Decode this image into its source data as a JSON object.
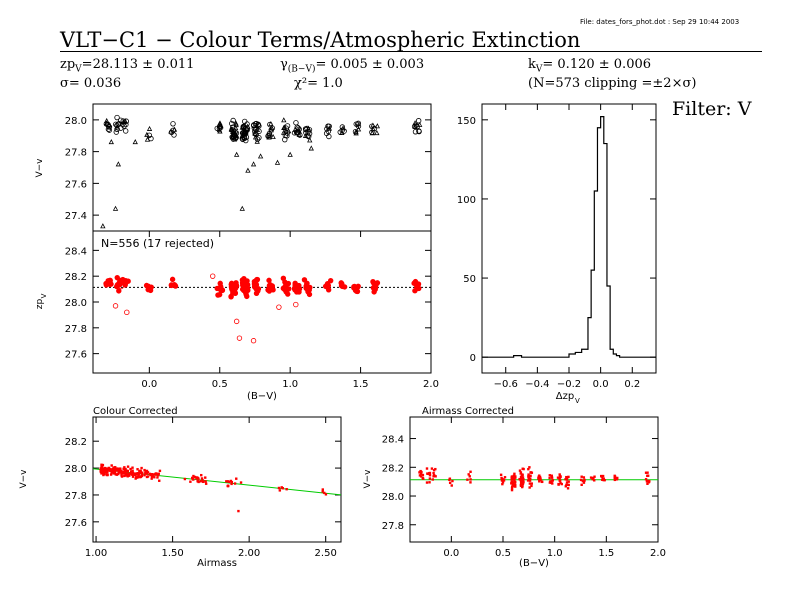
{
  "file_note": "File: dates_fors_phot.dot : Sep 29 10:44 2003",
  "title": "VLT−C1  −  Colour Terms/Atmospheric Extinction",
  "stats": {
    "zp_label": "zp",
    "zp_sub": "V",
    "zp_value": "=28.113 ± 0.011",
    "sigma": "σ= 0.036",
    "gamma_label": "γ",
    "gamma_sub": "(B−V)",
    "gamma_value": "= 0.005 ± 0.003",
    "chi_label": "χ²= ",
    "chi_value": "1.0",
    "k_label": "k",
    "k_sub": "V",
    "k_value": "= 0.120 ± 0.006",
    "clip": "(N=573 clipping =±2×σ)"
  },
  "filter_label": "Filter: V",
  "colors": {
    "rejected": "#000000",
    "kept": "#ff0000",
    "fit_line": "#00cc00",
    "zp_line": "#000000"
  },
  "chart_data": [
    {
      "id": "v_minus_v_raw",
      "type": "scatter",
      "xlabel": "",
      "ylabel": "V−v",
      "xlim": [
        -0.4,
        2.0
      ],
      "ylim": [
        27.3,
        28.1
      ],
      "yticks": [
        27.4,
        27.6,
        27.8,
        28.0
      ],
      "ytick_labels": [
        "27.4",
        "27.6",
        "27.8",
        "28.0"
      ],
      "groups": [
        {
          "x": -0.29,
          "y_center": 27.97,
          "spread": 0.05,
          "n": 10
        },
        {
          "x": -0.22,
          "y_center": 27.96,
          "spread": 0.05,
          "n": 10
        },
        {
          "x": -0.17,
          "y_center": 27.97,
          "spread": 0.05,
          "n": 8
        },
        {
          "x": 0.0,
          "y_center": 27.93,
          "spread": 0.04,
          "n": 5
        },
        {
          "x": 0.17,
          "y_center": 27.95,
          "spread": 0.05,
          "n": 6
        },
        {
          "x": 0.5,
          "y_center": 27.93,
          "spread": 0.05,
          "n": 10
        },
        {
          "x": 0.6,
          "y_center": 27.93,
          "spread": 0.06,
          "n": 30
        },
        {
          "x": 0.68,
          "y_center": 27.93,
          "spread": 0.06,
          "n": 35
        },
        {
          "x": 0.76,
          "y_center": 27.94,
          "spread": 0.06,
          "n": 20
        },
        {
          "x": 0.86,
          "y_center": 27.93,
          "spread": 0.05,
          "n": 12
        },
        {
          "x": 0.97,
          "y_center": 27.94,
          "spread": 0.06,
          "n": 12
        },
        {
          "x": 1.05,
          "y_center": 27.93,
          "spread": 0.05,
          "n": 14
        },
        {
          "x": 1.12,
          "y_center": 27.93,
          "spread": 0.05,
          "n": 12
        },
        {
          "x": 1.27,
          "y_center": 27.94,
          "spread": 0.04,
          "n": 8
        },
        {
          "x": 1.37,
          "y_center": 27.94,
          "spread": 0.04,
          "n": 6
        },
        {
          "x": 1.47,
          "y_center": 27.94,
          "spread": 0.04,
          "n": 8
        },
        {
          "x": 1.6,
          "y_center": 27.94,
          "spread": 0.04,
          "n": 8
        },
        {
          "x": 1.9,
          "y_center": 27.95,
          "spread": 0.04,
          "n": 10
        }
      ],
      "outliers": [
        {
          "x": -0.24,
          "y": 27.44
        },
        {
          "x": -0.22,
          "y": 27.72
        },
        {
          "x": -0.27,
          "y": 27.86
        },
        {
          "x": -0.33,
          "y": 27.33
        },
        {
          "x": -0.1,
          "y": 27.86
        },
        {
          "x": 0.66,
          "y": 27.44
        },
        {
          "x": 0.7,
          "y": 27.68
        },
        {
          "x": 0.74,
          "y": 27.72
        },
        {
          "x": 0.79,
          "y": 27.77
        },
        {
          "x": 0.91,
          "y": 27.73
        },
        {
          "x": 1.15,
          "y": 27.82
        },
        {
          "x": 1.0,
          "y": 27.78
        },
        {
          "x": 0.62,
          "y": 27.78
        }
      ]
    },
    {
      "id": "zp_vs_bv",
      "type": "scatter",
      "annotation": "N=556 (17 rejected)",
      "xlabel": "(B−V)",
      "ylabel": "zp",
      "ylabel_sub": "V",
      "xlim": [
        -0.4,
        2.0
      ],
      "ylim": [
        27.45,
        28.55
      ],
      "xticks": [
        0.0,
        0.5,
        1.0,
        1.5,
        2.0
      ],
      "xtick_labels": [
        "0.0",
        "0.5",
        "1.0",
        "1.5",
        "2.0"
      ],
      "yticks": [
        27.6,
        27.8,
        28.0,
        28.2,
        28.4
      ],
      "ytick_labels": [
        "27.6",
        "27.8",
        "28.0",
        "28.2",
        "28.4"
      ],
      "zp_level": 28.113,
      "groups_from": "v_minus_v_raw",
      "zp_offset": 0.18,
      "rejected": [
        {
          "x": -0.24,
          "y": 27.97
        },
        {
          "x": -0.2,
          "y": 28.12
        },
        {
          "x": -0.16,
          "y": 27.92
        },
        {
          "x": 0.62,
          "y": 27.85
        },
        {
          "x": 0.64,
          "y": 27.72
        },
        {
          "x": 0.74,
          "y": 27.7
        },
        {
          "x": 0.92,
          "y": 27.96
        },
        {
          "x": 1.04,
          "y": 27.98
        },
        {
          "x": 0.45,
          "y": 28.2
        }
      ]
    },
    {
      "id": "delta_zp_histogram",
      "type": "bar",
      "xlabel": "Δzp",
      "xlabel_sub": "V",
      "xlim": [
        -0.75,
        0.35
      ],
      "ylim": [
        -10,
        160
      ],
      "xticks": [
        -0.6,
        -0.4,
        -0.2,
        0.0,
        0.2
      ],
      "xtick_labels": [
        "−0.6",
        "−0.4",
        "−0.2",
        "0.0",
        "0.2"
      ],
      "yticks": [
        0,
        50,
        100,
        150
      ],
      "ytick_labels": [
        "0",
        "50",
        "100",
        "150"
      ],
      "bin_edges": [
        -0.75,
        -0.55,
        -0.5,
        -0.2,
        -0.16,
        -0.12,
        -0.08,
        -0.06,
        -0.04,
        -0.02,
        0.0,
        0.02,
        0.04,
        0.06,
        0.08,
        0.1,
        0.12,
        0.35
      ],
      "values": [
        0,
        1,
        0,
        2,
        3,
        5,
        25,
        55,
        105,
        145,
        152,
        135,
        45,
        5,
        2,
        1,
        0
      ]
    },
    {
      "id": "colour_corrected_vs_airmass",
      "type": "scatter",
      "panel_title": "Colour Corrected",
      "xlabel": "Airmass",
      "ylabel": "V−v",
      "xlim": [
        0.98,
        2.6
      ],
      "ylim": [
        27.45,
        28.38
      ],
      "xticks": [
        1.0,
        1.5,
        2.0,
        2.5
      ],
      "xtick_labels": [
        "1.00",
        "1.50",
        "2.00",
        "2.50"
      ],
      "yticks": [
        27.6,
        27.8,
        28.0,
        28.2
      ],
      "ytick_labels": [
        "27.6",
        "27.8",
        "28.0",
        "28.2"
      ],
      "fit": {
        "x0": 1.0,
        "y0": 27.993,
        "slope": -0.12
      },
      "clusters": [
        {
          "x_range": [
            1.03,
            1.42
          ],
          "n": 210
        },
        {
          "x_range": [
            1.58,
            1.72
          ],
          "n": 25
        },
        {
          "x_range": [
            1.85,
            1.95
          ],
          "n": 12
        },
        {
          "x_range": [
            2.18,
            2.25
          ],
          "n": 4
        },
        {
          "x_range": [
            2.48,
            2.52
          ],
          "n": 4
        }
      ],
      "points_extra": [
        {
          "x": 1.93,
          "y": 27.68
        },
        {
          "x": 2.22,
          "y": 27.85
        }
      ]
    },
    {
      "id": "airmass_corrected_vs_bv",
      "type": "scatter",
      "panel_title": "Airmass Corrected",
      "xlabel": "(B−V)",
      "ylabel": "V−v",
      "xlim": [
        -0.4,
        2.0
      ],
      "ylim": [
        27.68,
        28.55
      ],
      "xticks": [
        0.0,
        0.5,
        1.0,
        1.5,
        2.0
      ],
      "xtick_labels": [
        "0.0",
        "0.5",
        "1.0",
        "1.5",
        "2.0"
      ],
      "yticks": [
        27.8,
        28.0,
        28.2,
        28.4
      ],
      "ytick_labels": [
        "27.8",
        "28.0",
        "28.2",
        "28.4"
      ],
      "fit_level": 28.113,
      "groups_from": "v_minus_v_raw",
      "zp_offset": 0.18
    }
  ]
}
